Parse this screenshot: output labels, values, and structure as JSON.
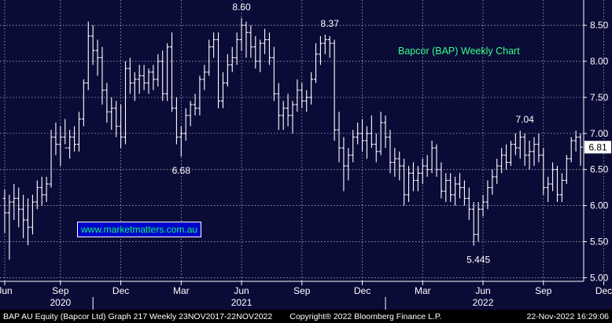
{
  "chart_data": {
    "type": "ohlc",
    "title": "Bapcor (BAP) Weekly Chart",
    "watermark": "www.marketmatters.com.au",
    "ylim": [
      4.95,
      8.85
    ],
    "y_ticks": [
      "5.00",
      "5.50",
      "6.00",
      "6.50",
      "7.00",
      "7.50",
      "8.00",
      "8.50"
    ],
    "x_ticks": [
      {
        "label": "Jun",
        "week": 0
      },
      {
        "label": "Sep",
        "week": 12
      },
      {
        "label": "Dec",
        "week": 25
      },
      {
        "label": "Mar",
        "week": 38
      },
      {
        "label": "Jun",
        "week": 51
      },
      {
        "label": "Sep",
        "week": 64
      },
      {
        "label": "Dec",
        "week": 77
      },
      {
        "label": "Mar",
        "week": 90
      },
      {
        "label": "Jun",
        "week": 103
      },
      {
        "label": "Sep",
        "week": 116
      },
      {
        "label": "Dec",
        "week": 129
      }
    ],
    "year_labels": [
      {
        "label": "2020",
        "week": 12
      },
      {
        "label": "2021",
        "week": 51
      },
      {
        "label": "2022",
        "week": 103
      }
    ],
    "last_price": "6.81",
    "annotations": [
      {
        "text": "8.60",
        "week": 51,
        "value": 8.6
      },
      {
        "text": "8.37",
        "week": 70,
        "value": 8.37
      },
      {
        "text": "6.68",
        "week": 38,
        "value": 6.68
      },
      {
        "text": "7.04",
        "week": 112,
        "value": 7.04
      },
      {
        "text": "5.445",
        "week": 102,
        "value": 5.445
      }
    ],
    "series": [
      {
        "values": [
          [
            6.1,
            6.22,
            5.62,
            5.9
          ],
          [
            5.9,
            6.15,
            5.25,
            6.05
          ],
          [
            6.05,
            6.3,
            5.8,
            6.1
          ],
          [
            6.1,
            6.25,
            5.7,
            5.95
          ],
          [
            5.95,
            6.15,
            5.55,
            5.8
          ],
          [
            5.8,
            6.1,
            5.45,
            5.7
          ],
          [
            5.7,
            6.15,
            5.6,
            6.05
          ],
          [
            6.05,
            6.35,
            5.95,
            6.25
          ],
          [
            6.25,
            6.4,
            6.0,
            6.15
          ],
          [
            6.15,
            6.4,
            6.05,
            6.3
          ],
          [
            6.3,
            7.05,
            6.25,
            6.95
          ],
          [
            6.95,
            7.15,
            6.7,
            6.85
          ],
          [
            6.85,
            7.1,
            6.55,
            6.95
          ],
          [
            6.95,
            7.2,
            6.85,
            6.8
          ],
          [
            6.8,
            7.05,
            6.65,
            6.95
          ],
          [
            6.95,
            7.1,
            6.75,
            6.85
          ],
          [
            6.85,
            7.3,
            6.75,
            7.2
          ],
          [
            7.2,
            7.75,
            7.1,
            7.7
          ],
          [
            7.7,
            8.55,
            7.6,
            8.35
          ],
          [
            8.35,
            8.5,
            7.95,
            8.15
          ],
          [
            8.15,
            8.3,
            7.8,
            8.05
          ],
          [
            8.05,
            8.2,
            7.4,
            7.6
          ],
          [
            7.6,
            7.7,
            7.15,
            7.3
          ],
          [
            7.3,
            7.5,
            7.05,
            7.35
          ],
          [
            7.35,
            7.45,
            6.95,
            7.1
          ],
          [
            7.1,
            7.4,
            6.8,
            6.95
          ],
          [
            6.95,
            8.0,
            6.85,
            7.9
          ],
          [
            7.9,
            8.05,
            7.55,
            7.7
          ],
          [
            7.7,
            7.85,
            7.45,
            7.75
          ],
          [
            7.75,
            7.95,
            7.55,
            7.8
          ],
          [
            7.8,
            7.95,
            7.6,
            7.7
          ],
          [
            7.7,
            7.9,
            7.55,
            7.85
          ],
          [
            7.85,
            7.95,
            7.6,
            7.75
          ],
          [
            7.75,
            8.1,
            7.65,
            8.0
          ],
          [
            8.0,
            8.15,
            7.45,
            7.55
          ],
          [
            7.55,
            8.25,
            7.45,
            8.2
          ],
          [
            8.2,
            8.4,
            7.3,
            7.35
          ],
          [
            7.35,
            7.5,
            6.85,
            6.95
          ],
          [
            6.95,
            7.1,
            6.68,
            7.0
          ],
          [
            7.0,
            7.35,
            6.9,
            7.25
          ],
          [
            7.25,
            7.45,
            7.1,
            7.4
          ],
          [
            7.4,
            7.55,
            7.25,
            7.35
          ],
          [
            7.35,
            7.8,
            7.25,
            7.75
          ],
          [
            7.75,
            7.95,
            7.6,
            7.85
          ],
          [
            7.85,
            8.3,
            7.8,
            8.2
          ],
          [
            8.2,
            8.4,
            8.05,
            8.3
          ],
          [
            8.3,
            8.4,
            7.35,
            7.45
          ],
          [
            7.45,
            7.85,
            7.35,
            7.7
          ],
          [
            7.7,
            8.1,
            7.65,
            7.95
          ],
          [
            7.95,
            8.2,
            7.85,
            8.05
          ],
          [
            8.05,
            8.4,
            7.95,
            8.3
          ],
          [
            8.3,
            8.6,
            8.15,
            8.5
          ],
          [
            8.5,
            8.55,
            8.05,
            8.4
          ],
          [
            8.4,
            8.5,
            8.05,
            8.2
          ],
          [
            8.2,
            8.35,
            7.9,
            8.0
          ],
          [
            8.0,
            8.3,
            7.85,
            8.25
          ],
          [
            8.25,
            8.45,
            8.1,
            8.3
          ],
          [
            8.3,
            8.4,
            7.95,
            8.05
          ],
          [
            8.05,
            8.2,
            7.45,
            7.55
          ],
          [
            7.55,
            7.7,
            7.05,
            7.25
          ],
          [
            7.25,
            7.45,
            7.05,
            7.35
          ],
          [
            7.35,
            7.55,
            7.1,
            7.25
          ],
          [
            7.25,
            7.45,
            7.0,
            7.4
          ],
          [
            7.4,
            7.75,
            7.3,
            7.6
          ],
          [
            7.6,
            7.7,
            7.35,
            7.45
          ],
          [
            7.45,
            7.6,
            7.3,
            7.5
          ],
          [
            7.5,
            7.85,
            7.4,
            7.75
          ],
          [
            7.75,
            8.25,
            7.7,
            8.1
          ],
          [
            8.1,
            8.35,
            7.95,
            8.25
          ],
          [
            8.25,
            8.37,
            8.1,
            8.3
          ],
          [
            8.3,
            8.35,
            8.05,
            8.25
          ],
          [
            8.25,
            8.3,
            6.9,
            7.05
          ],
          [
            7.05,
            7.3,
            6.6,
            6.8
          ],
          [
            6.8,
            6.95,
            6.2,
            6.55
          ],
          [
            6.55,
            6.8,
            6.35,
            6.7
          ],
          [
            6.7,
            7.05,
            6.6,
            6.95
          ],
          [
            6.95,
            7.15,
            6.85,
            7.0
          ],
          [
            7.0,
            7.2,
            6.75,
            6.9
          ],
          [
            6.9,
            7.1,
            6.65,
            7.0
          ],
          [
            7.0,
            7.25,
            6.8,
            6.85
          ],
          [
            6.85,
            7.0,
            6.6,
            6.75
          ],
          [
            6.75,
            7.3,
            6.7,
            7.15
          ],
          [
            7.15,
            7.25,
            6.8,
            6.95
          ],
          [
            6.95,
            7.05,
            6.45,
            6.6
          ],
          [
            6.6,
            6.8,
            6.4,
            6.65
          ],
          [
            6.65,
            6.75,
            6.35,
            6.55
          ],
          [
            6.55,
            6.65,
            6.0,
            6.15
          ],
          [
            6.15,
            6.55,
            6.05,
            6.45
          ],
          [
            6.45,
            6.6,
            6.2,
            6.35
          ],
          [
            6.35,
            6.55,
            6.2,
            6.45
          ],
          [
            6.45,
            6.65,
            6.3,
            6.55
          ],
          [
            6.55,
            6.7,
            6.4,
            6.5
          ],
          [
            6.5,
            6.9,
            6.45,
            6.8
          ],
          [
            6.8,
            6.85,
            6.4,
            6.5
          ],
          [
            6.5,
            6.6,
            6.1,
            6.2
          ],
          [
            6.2,
            6.45,
            6.05,
            6.35
          ],
          [
            6.35,
            6.45,
            6.05,
            6.15
          ],
          [
            6.15,
            6.4,
            6.0,
            6.3
          ],
          [
            6.3,
            6.45,
            6.1,
            6.25
          ],
          [
            6.25,
            6.35,
            6.0,
            6.1
          ],
          [
            6.1,
            6.25,
            5.8,
            5.95
          ],
          [
            5.95,
            6.05,
            5.445,
            5.6
          ],
          [
            5.6,
            6.05,
            5.5,
            5.95
          ],
          [
            5.95,
            6.15,
            5.85,
            6.05
          ],
          [
            6.05,
            6.35,
            5.95,
            6.25
          ],
          [
            6.25,
            6.5,
            6.15,
            6.4
          ],
          [
            6.4,
            6.65,
            6.3,
            6.55
          ],
          [
            6.55,
            6.8,
            6.45,
            6.7
          ],
          [
            6.7,
            6.85,
            6.5,
            6.6
          ],
          [
            6.6,
            6.9,
            6.55,
            6.85
          ],
          [
            6.85,
            7.0,
            6.7,
            6.8
          ],
          [
            6.8,
            7.04,
            6.65,
            6.95
          ],
          [
            6.95,
            7.0,
            6.55,
            6.7
          ],
          [
            6.7,
            6.9,
            6.5,
            6.75
          ],
          [
            6.75,
            6.95,
            6.55,
            6.85
          ],
          [
            6.85,
            7.0,
            6.6,
            6.7
          ],
          [
            6.7,
            6.8,
            6.15,
            6.25
          ],
          [
            6.25,
            6.4,
            6.05,
            6.3
          ],
          [
            6.3,
            6.6,
            6.2,
            6.5
          ],
          [
            6.5,
            6.55,
            6.05,
            6.15
          ],
          [
            6.15,
            6.45,
            6.05,
            6.35
          ],
          [
            6.35,
            6.7,
            6.3,
            6.65
          ],
          [
            6.65,
            6.95,
            6.6,
            6.9
          ],
          [
            6.9,
            7.04,
            6.75,
            6.95
          ],
          [
            6.95,
            7.0,
            6.55,
            6.81
          ]
        ]
      }
    ]
  },
  "footer": {
    "left": "BAP AU Equity (Bapcor Ltd) Graph 217  Weekly 23NOV2017-22NOV2022",
    "middle": "Copyright® 2022 Bloomberg Finance L.P.",
    "right": "22-Nov-2022 16:29:06"
  },
  "colors": {
    "background": "#0b0b38",
    "bars": "#ffffff",
    "grid": "#c8c8d0",
    "title": "#33ff88",
    "watermark_bg": "#0000cc",
    "watermark_text": "#00ff66"
  }
}
